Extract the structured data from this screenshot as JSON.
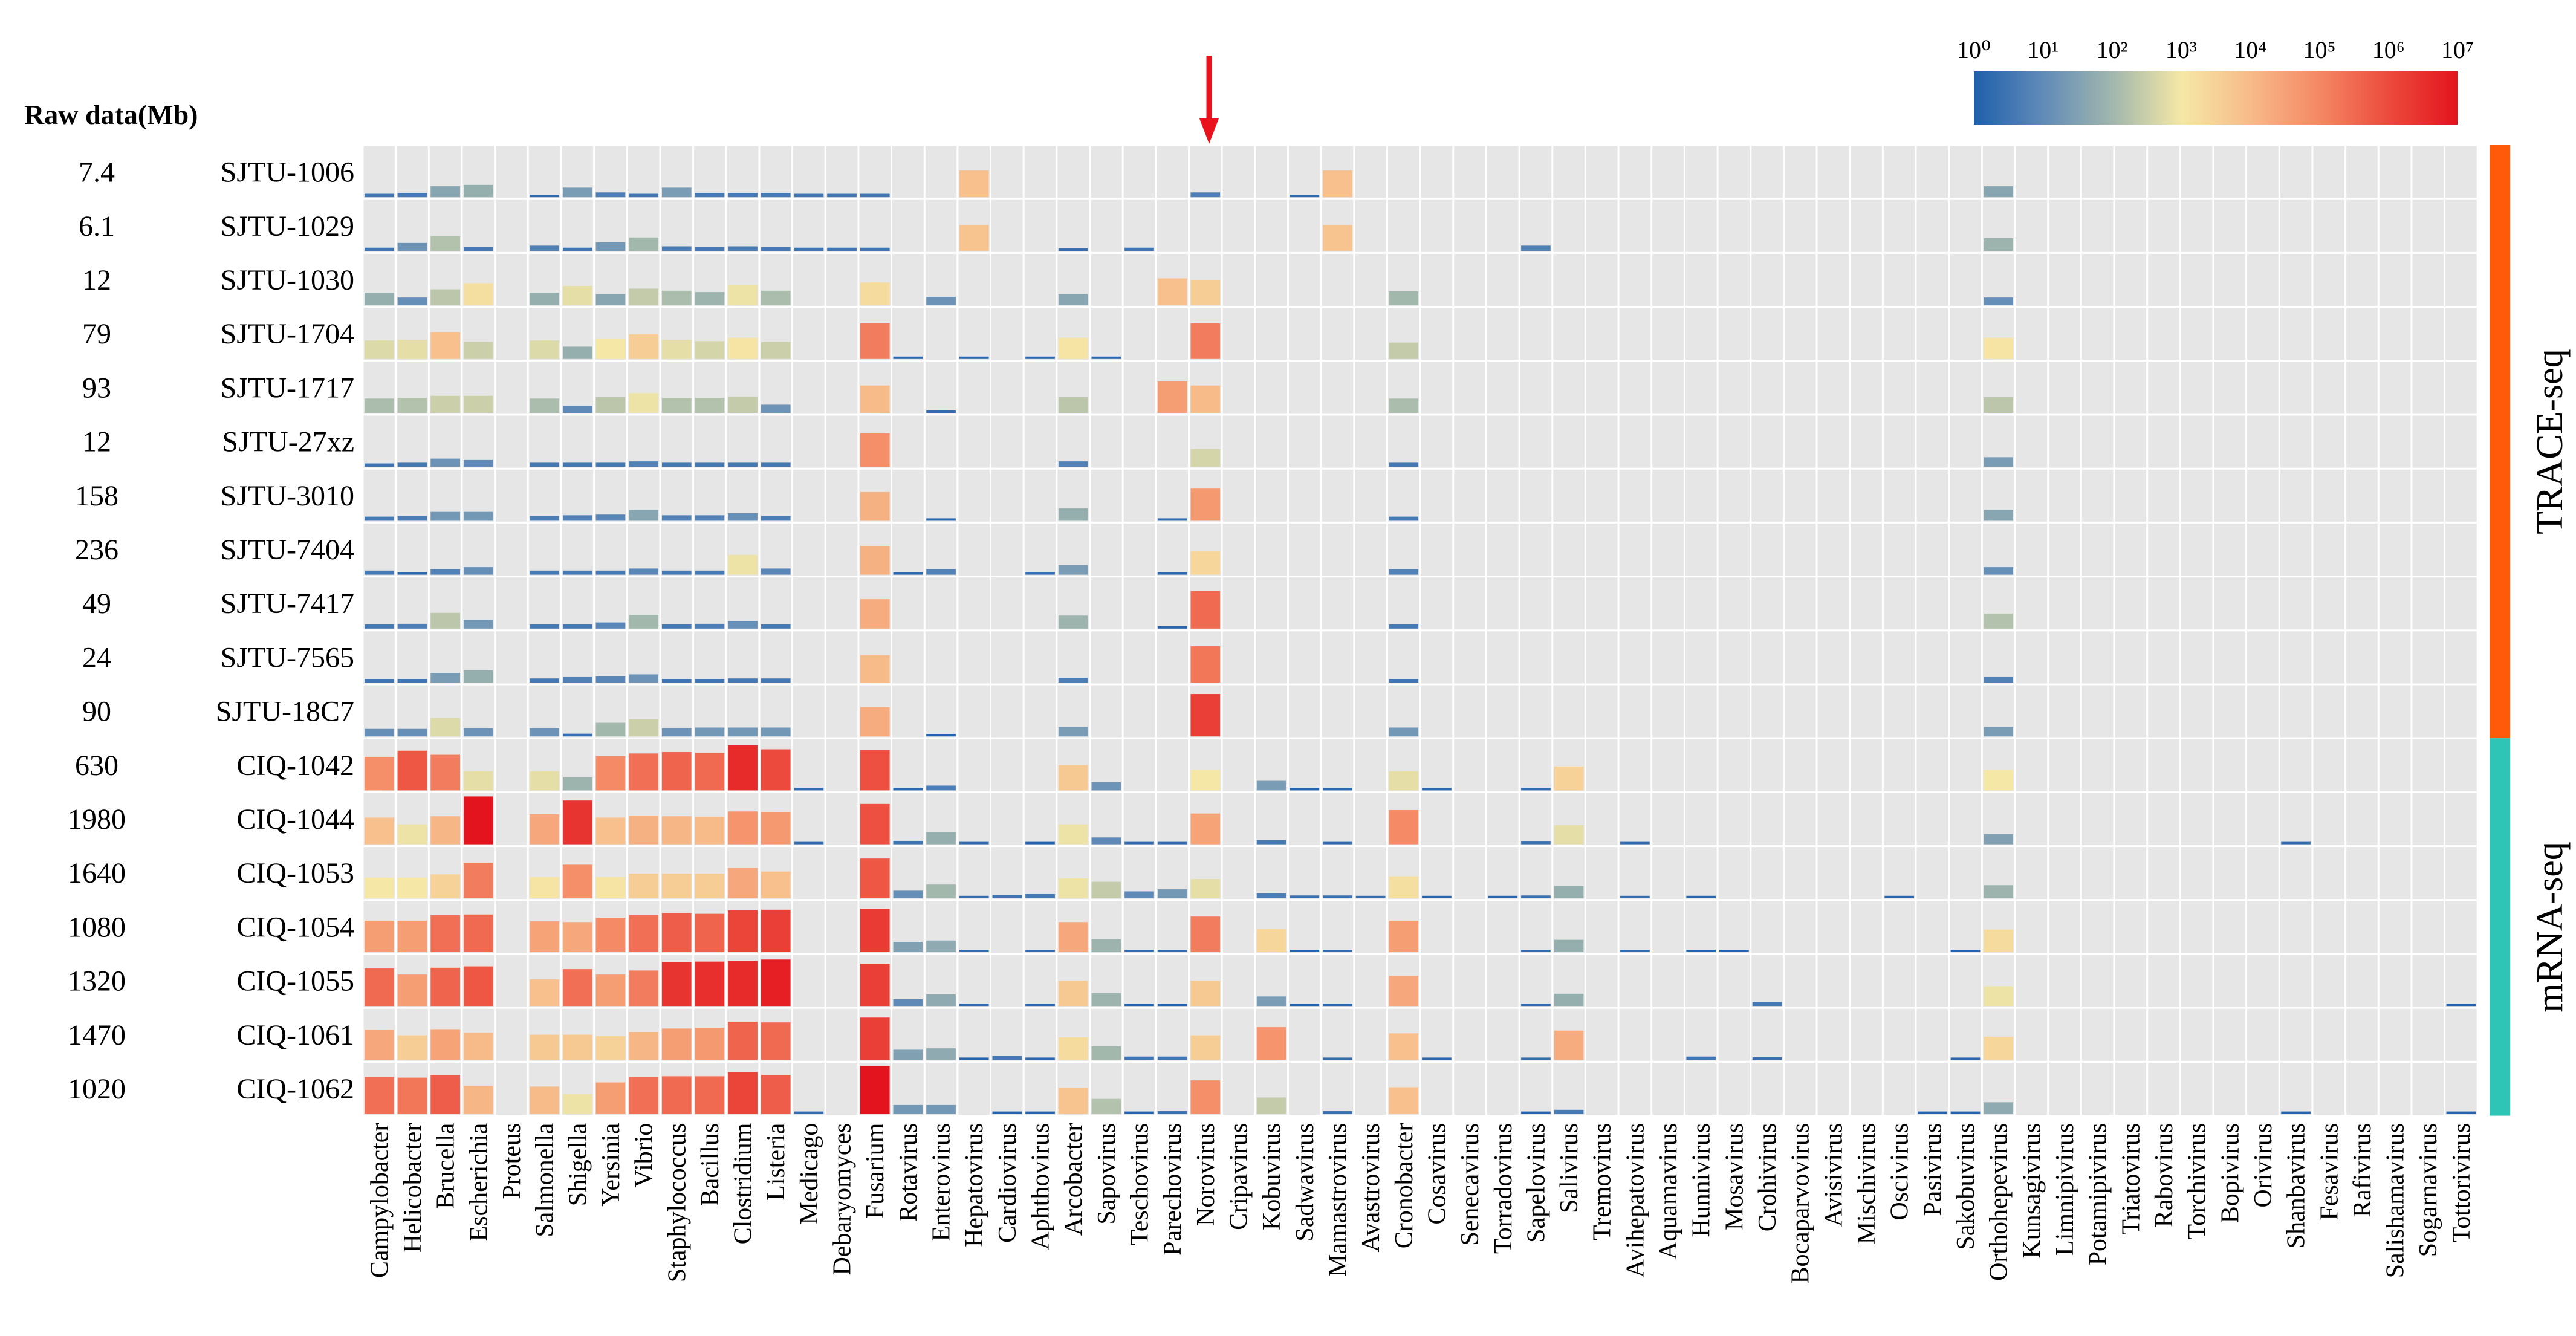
{
  "header": {
    "raw_data_label": "Raw data(Mb)"
  },
  "chart_data": {
    "type": "heatmap",
    "scale": "log10",
    "colorbar": {
      "ticks": [
        "10⁰",
        "10¹",
        "10²",
        "10³",
        "10⁴",
        "10⁵",
        "10⁶",
        "10⁷"
      ],
      "colors": [
        "#2166ac",
        "#6d8fb5",
        "#a9b8a8",
        "#f2e6a6",
        "#f6b482",
        "#f08060",
        "#e83030",
        "#e01818"
      ]
    },
    "columns": [
      "Campylobacter",
      "Helicobacter",
      "Brucella",
      "Escherichia",
      "Proteus",
      "Salmonella",
      "Shigella",
      "Yersinia",
      "Vibrio",
      "Staphylococcus",
      "Bacillus",
      "Clostridium",
      "Listeria",
      "Medicago",
      "Debaryomyces",
      "Fusarium",
      "Rotavirus",
      "Enterovirus",
      "Hepatovirus",
      "Cardiovirus",
      "Aphthovirus",
      "Arcobacter",
      "Sapovirus",
      "Teschovirus",
      "Parechovirus",
      "Norovirus",
      "Cripavirus",
      "Kobuvirus",
      "Sadwavirus",
      "Mamastrovirus",
      "Avastrovirus",
      "Cronobacter",
      "Cosavirus",
      "Senecavirus",
      "Torradovirus",
      "Sapelovirus",
      "Salivirus",
      "Tremovirus",
      "Avihepatovirus",
      "Aquamavirus",
      "Hunnivirus",
      "Mosavirus",
      "Crohivirus",
      "Bocaparvovirus",
      "Avisivirus",
      "Mischivirus",
      "Oscivirus",
      "Pasivirus",
      "Sakobuvirus",
      "Orthohepevirus",
      "Kunsagivirus",
      "Limnipivirus",
      "Potamipivirus",
      "Triatovirus",
      "Rabovirus",
      "Torchivirus",
      "Bopivirus",
      "Orivirus",
      "Shanbavirus",
      "Fesavirus",
      "Rafivirus",
      "Salishamavirus",
      "Sogarnavirus",
      "Tottorivirus"
    ],
    "samples": [
      "SJTU-1006",
      "SJTU-1029",
      "SJTU-1030",
      "SJTU-1704",
      "SJTU-1717",
      "SJTU-27xz",
      "SJTU-3010",
      "SJTU-7404",
      "SJTU-7417",
      "SJTU-7565",
      "SJTU-18C7",
      "CIQ-1042",
      "CIQ-1044",
      "CIQ-1053",
      "CIQ-1054",
      "CIQ-1055",
      "CIQ-1061",
      "CIQ-1062"
    ],
    "raw_data_mb": [
      "7.4",
      "6.1",
      "12",
      "79",
      "93",
      "12",
      "158",
      "236",
      "49",
      "24",
      "90",
      "630",
      "1980",
      "1640",
      "1080",
      "1320",
      "1470",
      "1020"
    ],
    "groups": [
      {
        "name": "TRACE-seq",
        "rows": [
          0,
          10
        ],
        "color": "#ff5a0a"
      },
      {
        "name": "mRNA-seq",
        "rows": [
          11,
          17
        ],
        "color": "#2ec4b6"
      }
    ],
    "highlight_column": "Norovirus",
    "log10_values": [
      [
        0.5,
        0.6,
        1.6,
        1.8,
        0,
        0.2,
        1.4,
        0.7,
        0.5,
        1.4,
        0.6,
        0.6,
        0.6,
        0.5,
        0.5,
        0.5,
        0,
        0,
        3.9,
        0,
        0,
        0,
        0,
        0,
        0,
        0.7,
        0,
        0,
        0.2,
        3.9,
        0,
        0,
        0,
        0,
        0,
        0,
        0,
        0,
        0,
        0,
        0,
        0,
        0,
        0,
        0,
        0,
        0,
        0,
        0,
        1.6,
        0,
        0,
        0,
        0,
        0,
        0,
        0,
        0,
        0,
        0,
        0,
        0,
        0,
        0
      ],
      [
        0.5,
        1.2,
        2.2,
        0.6,
        0,
        0.8,
        0.5,
        1.3,
        2.0,
        0.7,
        0.6,
        0.7,
        0.6,
        0.5,
        0.5,
        0.5,
        0,
        0,
        3.8,
        0,
        0,
        0.4,
        0,
        0.5,
        0,
        0,
        0,
        0,
        0,
        3.8,
        0,
        0,
        0,
        0,
        0,
        0.8,
        0,
        0,
        0,
        0,
        0,
        0,
        0,
        0,
        0,
        0,
        0,
        0,
        0,
        1.9,
        0,
        0,
        0,
        0,
        0,
        0,
        0,
        0,
        0,
        0,
        0,
        0,
        0,
        0
      ],
      [
        1.8,
        1.1,
        2.3,
        3.2,
        0,
        1.8,
        2.8,
        1.6,
        2.4,
        2.1,
        1.9,
        2.9,
        2.1,
        0,
        0,
        3.3,
        0,
        1.2,
        0,
        0,
        0,
        1.6,
        0,
        0,
        3.9,
        3.6,
        0,
        0,
        0,
        0,
        0,
        2.0,
        0,
        0,
        0,
        0,
        0,
        0,
        0,
        0,
        0,
        0,
        0,
        0,
        0,
        0,
        0,
        0,
        0,
        1.1,
        0,
        0,
        0,
        0,
        0,
        0,
        0,
        0,
        0,
        0,
        0,
        0,
        0,
        0
      ],
      [
        2.7,
        2.8,
        3.9,
        2.5,
        0,
        2.7,
        1.8,
        3.0,
        3.6,
        2.8,
        2.6,
        3.1,
        2.5,
        0,
        0,
        5.2,
        0.2,
        0,
        0.2,
        0,
        0.2,
        3.1,
        0.2,
        0,
        0,
        5.2,
        0,
        0,
        0,
        0,
        0,
        2.4,
        0,
        0,
        0,
        0,
        0,
        0,
        0,
        0,
        0,
        0,
        0,
        0,
        0,
        0,
        0,
        0,
        0,
        3.1,
        0,
        0,
        0,
        0,
        0,
        0,
        0,
        0,
        0,
        0,
        0,
        0,
        0,
        0
      ],
      [
        2.1,
        2.2,
        2.5,
        2.5,
        0,
        2.1,
        1.0,
        2.3,
        2.9,
        2.2,
        2.2,
        2.4,
        1.2,
        0,
        0,
        4.0,
        0,
        0.3,
        0,
        0,
        0,
        2.3,
        0,
        0,
        4.6,
        4.0,
        0,
        0,
        0,
        0,
        0,
        2.1,
        0,
        0,
        0,
        0,
        0,
        0,
        0,
        0,
        0,
        0,
        0,
        0,
        0,
        0,
        0,
        0,
        0,
        2.3,
        0,
        0,
        0,
        0,
        0,
        0,
        0,
        0,
        0,
        0,
        0,
        0,
        0,
        0
      ],
      [
        0.5,
        0.6,
        1.2,
        1.0,
        0,
        0.6,
        0.6,
        0.6,
        0.8,
        0.6,
        0.6,
        0.6,
        0.6,
        0,
        0,
        4.9,
        0,
        0,
        0,
        0,
        0,
        0.8,
        0,
        0,
        0,
        2.6,
        0,
        0,
        0,
        0,
        0,
        0.6,
        0,
        0,
        0,
        0,
        0,
        0,
        0,
        0,
        0,
        0,
        0,
        0,
        0,
        0,
        0,
        0,
        0,
        1.4,
        0,
        0,
        0,
        0,
        0,
        0,
        0,
        0,
        0,
        0,
        0,
        0,
        0,
        0
      ],
      [
        0.6,
        0.7,
        1.3,
        1.3,
        0,
        0.7,
        0.8,
        0.9,
        1.6,
        0.8,
        0.8,
        1.1,
        0.7,
        0,
        0,
        4.2,
        0,
        0.2,
        0,
        0,
        0,
        1.8,
        0,
        0,
        0.3,
        4.7,
        0,
        0,
        0,
        0,
        0,
        0.6,
        0,
        0,
        0,
        0,
        0,
        0,
        0,
        0,
        0,
        0,
        0,
        0,
        0,
        0,
        0,
        0,
        0,
        1.6,
        0,
        0,
        0,
        0,
        0,
        0,
        0,
        0,
        0,
        0,
        0,
        0,
        0,
        0
      ],
      [
        0.6,
        0.2,
        0.8,
        1.1,
        0,
        0.6,
        0.6,
        0.6,
        0.9,
        0.6,
        0.6,
        2.9,
        0.9,
        0,
        0,
        4.2,
        0.2,
        0.8,
        0,
        0,
        0.4,
        1.4,
        0,
        0,
        0.2,
        3.4,
        0,
        0,
        0,
        0,
        0,
        0.8,
        0,
        0,
        0,
        0,
        0,
        0,
        0,
        0,
        0,
        0,
        0,
        0,
        0,
        0,
        0,
        0,
        0,
        1.1,
        0,
        0,
        0,
        0,
        0,
        0,
        0,
        0,
        0,
        0,
        0,
        0,
        0,
        0
      ],
      [
        0.6,
        0.7,
        2.3,
        1.3,
        0,
        0.6,
        0.6,
        0.9,
        2.0,
        0.6,
        0.7,
        1.1,
        0.6,
        0,
        0,
        4.3,
        0,
        0,
        0,
        0,
        0,
        1.9,
        0,
        0,
        0.1,
        5.5,
        0,
        0,
        0,
        0,
        0,
        0.6,
        0,
        0,
        0,
        0,
        0,
        0,
        0,
        0,
        0,
        0,
        0,
        0,
        0,
        0,
        0,
        0,
        0,
        2.2,
        0,
        0,
        0,
        0,
        0,
        0,
        0,
        0,
        0,
        0,
        0,
        0,
        0,
        0
      ],
      [
        0.5,
        0.5,
        1.4,
        1.8,
        0,
        0.6,
        0.8,
        0.9,
        1.2,
        0.5,
        0.5,
        0.6,
        0.6,
        0,
        0,
        4.0,
        0,
        0,
        0,
        0,
        0,
        0.7,
        0,
        0,
        0,
        5.3,
        0,
        0,
        0,
        0,
        0,
        0.5,
        0,
        0,
        0,
        0,
        0,
        0,
        0,
        0,
        0,
        0,
        0,
        0,
        0,
        0,
        0,
        0,
        0,
        0.8,
        0,
        0,
        0,
        0,
        0,
        0,
        0,
        0,
        0,
        0,
        0,
        0,
        0,
        0
      ],
      [
        1.1,
        1.1,
        2.7,
        1.2,
        0,
        1.2,
        0.4,
        2.0,
        2.5,
        1.2,
        1.3,
        1.3,
        1.3,
        0,
        0,
        4.3,
        0,
        0.1,
        0,
        0,
        0,
        1.4,
        0,
        0,
        0,
        6.2,
        0,
        0,
        0,
        0,
        0,
        1.3,
        0,
        0,
        0,
        0,
        0,
        0,
        0,
        0,
        0,
        0,
        0,
        0,
        0,
        0,
        0,
        0,
        0,
        1.4,
        0,
        0,
        0,
        0,
        0,
        0,
        0,
        0,
        0,
        0,
        0,
        0,
        0,
        0
      ],
      [
        4.9,
        5.8,
        5.2,
        2.8,
        0,
        2.8,
        1.9,
        5.0,
        5.4,
        5.6,
        5.5,
        6.6,
        6.0,
        0.3,
        0,
        5.9,
        0.2,
        0.7,
        0,
        0,
        0,
        3.7,
        1.2,
        0,
        0,
        3.0,
        0,
        1.4,
        0.1,
        0.2,
        0,
        2.8,
        0.2,
        0,
        0,
        0.3,
        3.5,
        0,
        0,
        0,
        0,
        0,
        0,
        0,
        0,
        0,
        0,
        0,
        0,
        3.0,
        0,
        0,
        0,
        0,
        0,
        0,
        0,
        0,
        0,
        0,
        0,
        0,
        0,
        0
      ],
      [
        3.9,
        2.9,
        4.1,
        7.0,
        0,
        4.4,
        6.4,
        3.9,
        4.2,
        4.1,
        4.0,
        4.8,
        4.7,
        0.3,
        0,
        5.9,
        0.5,
        1.8,
        0.3,
        0,
        0.1,
        2.9,
        1.0,
        0.3,
        0.3,
        4.5,
        0,
        0.6,
        0,
        0.3,
        0,
        5.0,
        0,
        0,
        0,
        0.4,
        2.8,
        0,
        0.3,
        0,
        0,
        0,
        0,
        0,
        0,
        0,
        0,
        0,
        0,
        1.5,
        0,
        0,
        0,
        0,
        0,
        0,
        0,
        0,
        0.3,
        0,
        0,
        0,
        0,
        0
      ],
      [
        3.0,
        3.0,
        3.5,
        5.2,
        0,
        3.1,
        4.9,
        3.1,
        3.6,
        3.6,
        3.6,
        4.4,
        3.9,
        0,
        0,
        5.8,
        1.1,
        2.0,
        0.3,
        0.5,
        0.6,
        2.9,
        2.4,
        1.0,
        1.3,
        2.8,
        0,
        0.7,
        0.4,
        0.4,
        0.3,
        3.2,
        0.1,
        0,
        0.1,
        0.4,
        1.8,
        0,
        0.3,
        0,
        0.1,
        0,
        0,
        0,
        0,
        0,
        0.1,
        0,
        0,
        1.9,
        0,
        0,
        0,
        0,
        0,
        0,
        0,
        0,
        0,
        0,
        0,
        0,
        0,
        0
      ],
      [
        4.6,
        4.6,
        5.4,
        5.5,
        0,
        4.5,
        4.4,
        5.0,
        5.4,
        5.7,
        5.6,
        6.1,
        6.2,
        0,
        0,
        6.3,
        1.5,
        1.7,
        0.3,
        0,
        0.3,
        4.4,
        1.9,
        0.3,
        0.3,
        5.2,
        0,
        3.4,
        0.1,
        0.3,
        0,
        4.6,
        0,
        0,
        0,
        0.3,
        1.8,
        0,
        0.3,
        0,
        0.1,
        0.1,
        0,
        0,
        0,
        0,
        0,
        0,
        0.1,
        3.3,
        0,
        0,
        0,
        0,
        0,
        0,
        0,
        0,
        0,
        0,
        0,
        0,
        0,
        0
      ],
      [
        5.5,
        4.6,
        5.6,
        5.8,
        0,
        3.9,
        5.4,
        4.6,
        5.2,
        6.4,
        6.5,
        6.6,
        6.8,
        0,
        0,
        6.2,
        1.0,
        1.7,
        0.3,
        0,
        0.2,
        3.7,
        1.9,
        0.1,
        0.1,
        3.7,
        0,
        1.4,
        0.1,
        0.2,
        0,
        4.4,
        0,
        0,
        0,
        0.3,
        1.8,
        0,
        0,
        0,
        0,
        0,
        0.6,
        0,
        0,
        0,
        0,
        0,
        0,
        2.9,
        0,
        0,
        0,
        0,
        0,
        0,
        0,
        0,
        0,
        0,
        0,
        0,
        0,
        0.1
      ],
      [
        4.4,
        3.6,
        4.5,
        4.0,
        0,
        3.7,
        3.7,
        3.5,
        4.1,
        4.6,
        4.7,
        5.6,
        5.5,
        0,
        0,
        6.2,
        1.5,
        1.7,
        0.1,
        0.6,
        0.2,
        3.3,
        2.0,
        0.5,
        0.5,
        3.6,
        0,
        4.8,
        0,
        0.3,
        0,
        3.9,
        0.2,
        0,
        0,
        0.3,
        4.3,
        0,
        0,
        0,
        0.5,
        0,
        0.4,
        0,
        0,
        0,
        0,
        0,
        0.2,
        3.4,
        0,
        0,
        0,
        0,
        0,
        0,
        0,
        0,
        0,
        0,
        0,
        0,
        0,
        0
      ],
      [
        5.4,
        5.3,
        5.7,
        4.1,
        0,
        4.0,
        2.9,
        4.6,
        5.4,
        5.5,
        5.5,
        6.1,
        5.7,
        0.3,
        0,
        7.0,
        1.3,
        1.3,
        0,
        0.1,
        0.1,
        3.8,
        2.2,
        0.1,
        0.4,
        4.9,
        0,
        2.4,
        0,
        0.4,
        0,
        3.9,
        0,
        0,
        0,
        0.1,
        0.6,
        0,
        0,
        0,
        0,
        0,
        0,
        0,
        0,
        0,
        0,
        0.1,
        0.1,
        1.7,
        0,
        0,
        0,
        0,
        0,
        0,
        0,
        0,
        0.1,
        0,
        0,
        0,
        0,
        0.1
      ]
    ]
  }
}
